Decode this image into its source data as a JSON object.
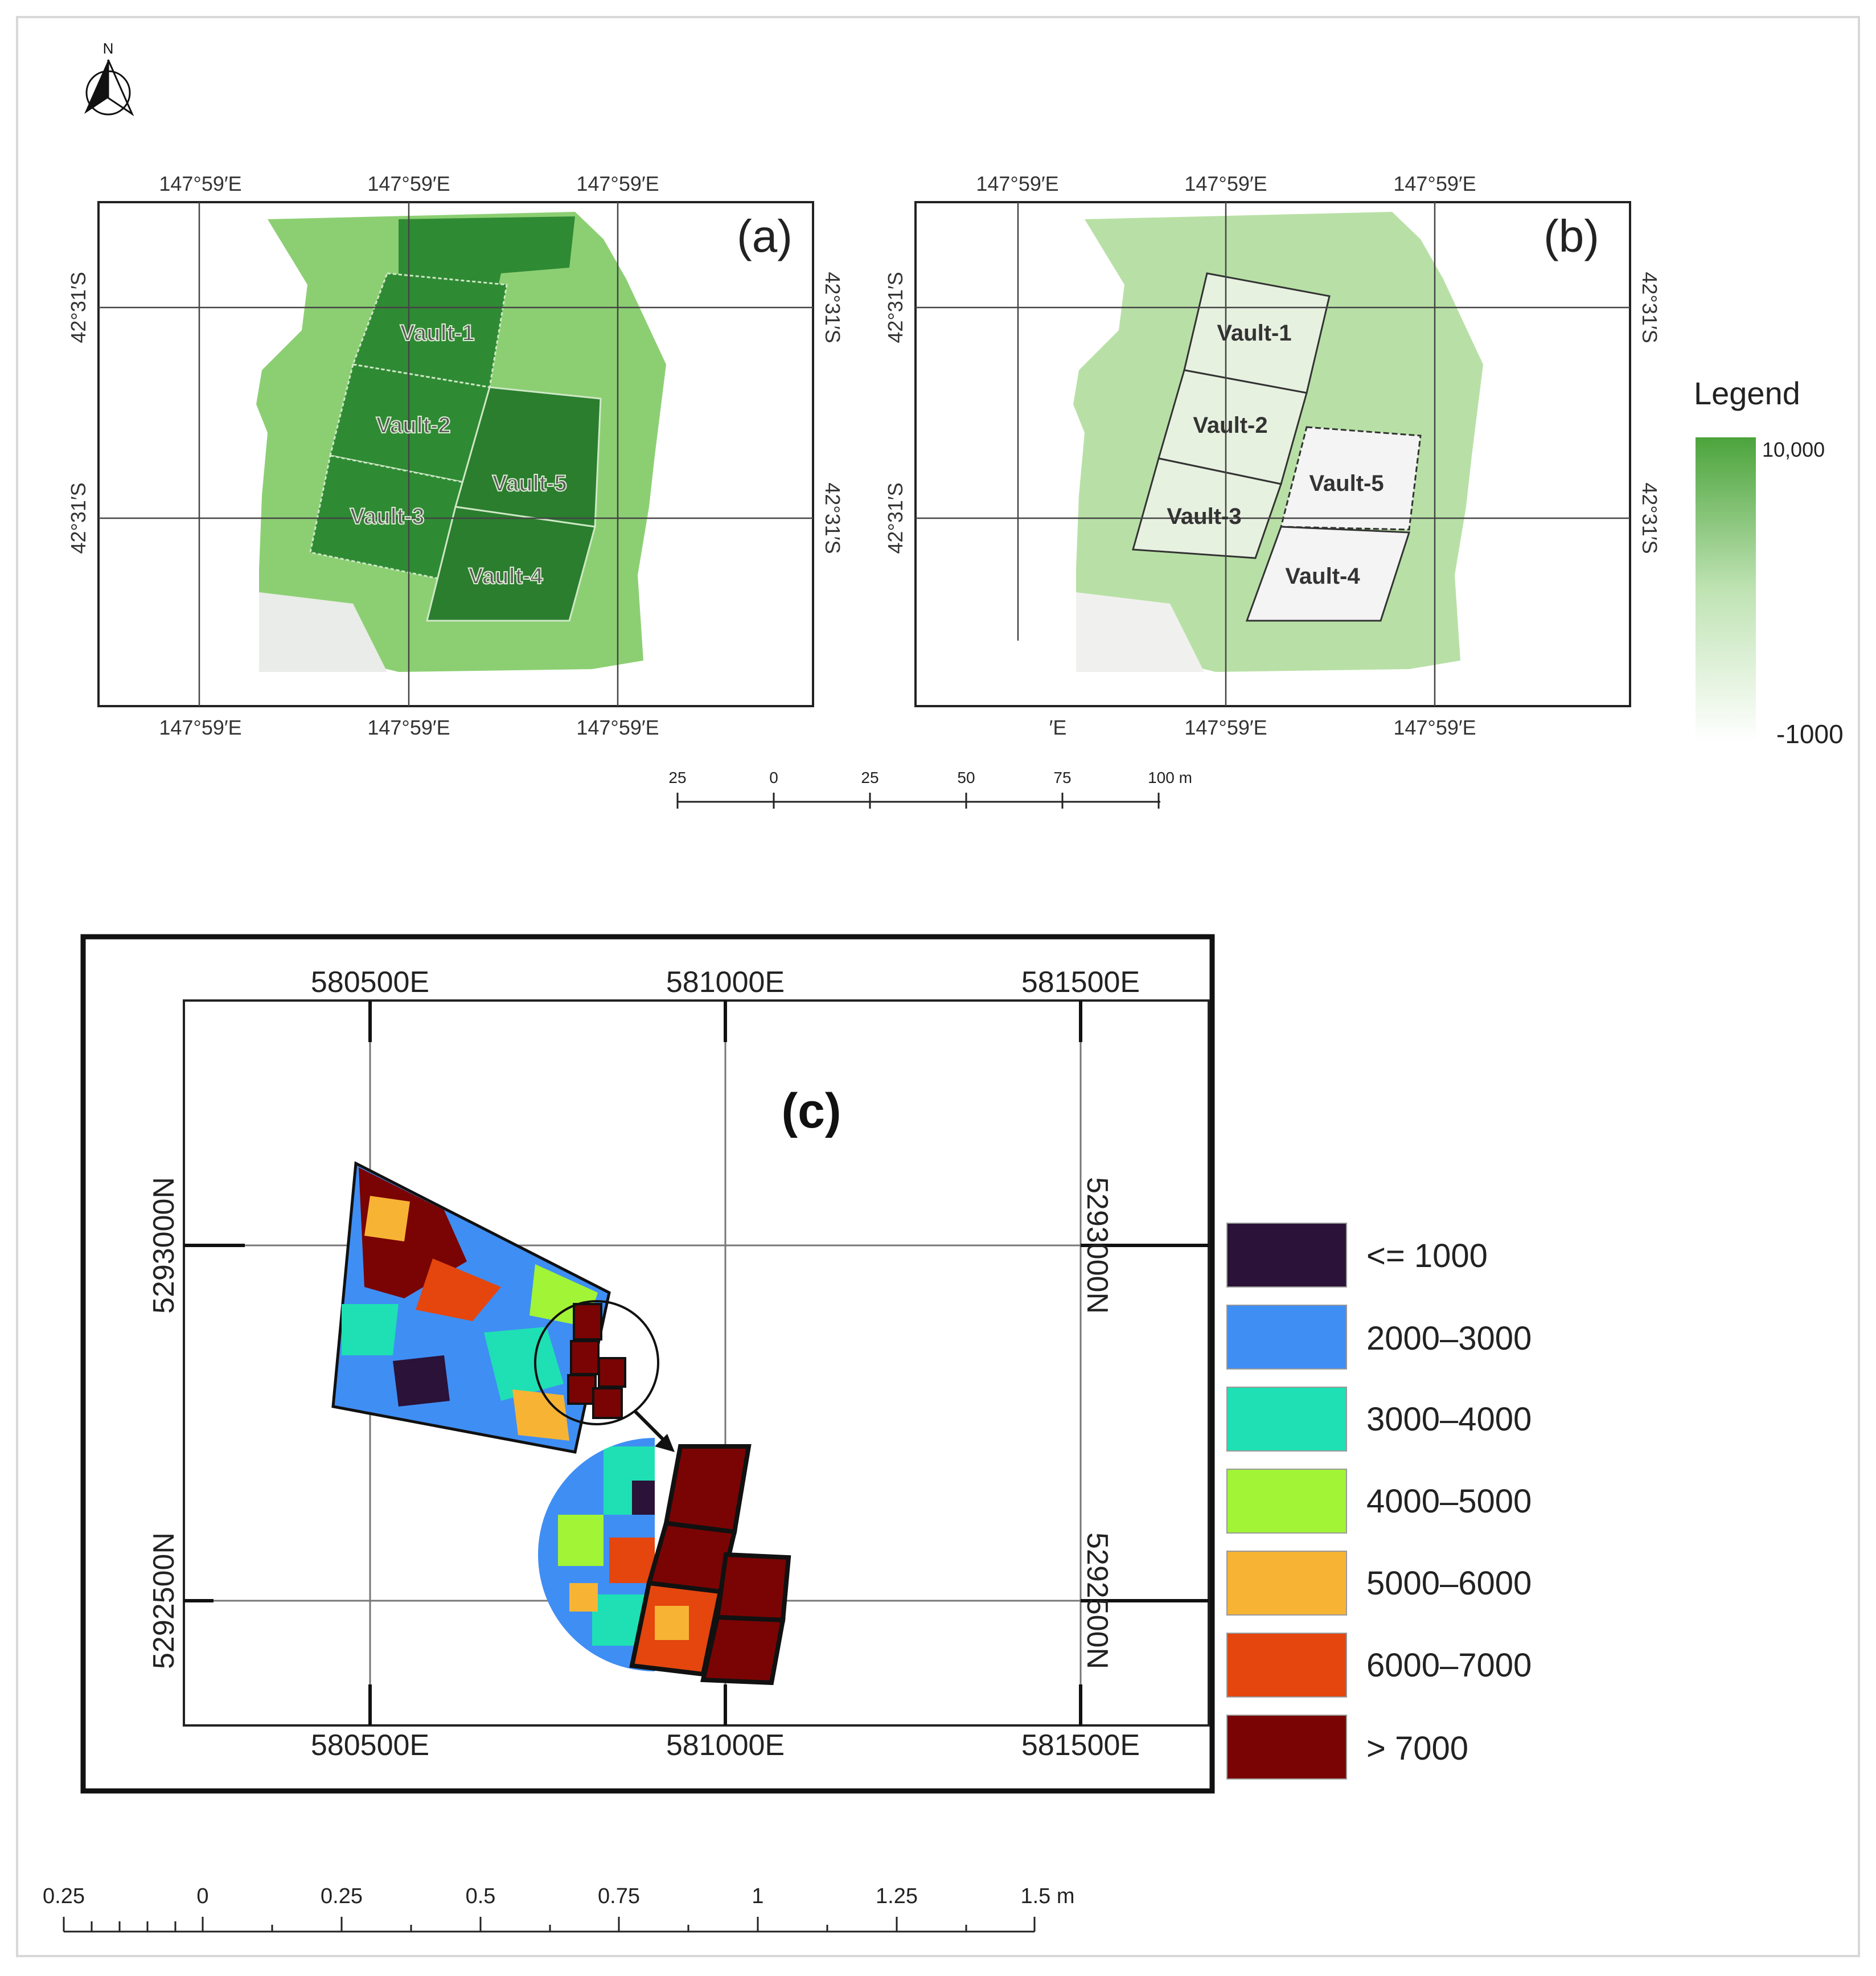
{
  "north": {
    "label": "N",
    "icon": "north-arrow-icon"
  },
  "panel_a": {
    "label": "(a)",
    "top_lon": [
      "147°59′E",
      "147°59′E",
      "147°59′E"
    ],
    "bottom_lon": [
      "147°59′E",
      "147°59′E",
      "147°59′E"
    ],
    "left_lat": [
      "42°31′S",
      "42°31′S"
    ],
    "right_lat": [
      "42°31′S",
      "42°31′S"
    ],
    "vaults": [
      "Vault-1",
      "Vault-2",
      "Vault-5",
      "Vault-3",
      "Vault-4"
    ]
  },
  "panel_b": {
    "label": "(b)",
    "top_lon": [
      "147°59′E",
      "147°59′E",
      "147°59′E"
    ],
    "bottom_lon": [
      "′E",
      "147°59′E",
      "147°59′E"
    ],
    "left_lat": [
      "42°31′S",
      "42°31′S"
    ],
    "right_lat": [
      "42°31′S",
      "42°31′S"
    ],
    "vaults": [
      "Vault-1",
      "Vault-2",
      "Vault-5",
      "Vault-3",
      "Vault-4"
    ]
  },
  "legend_ab": {
    "title": "Legend",
    "max": "10,000",
    "min": "-1000",
    "color_high": "#4ca43c",
    "color_low": "#ffffff"
  },
  "scalebar_top": {
    "ticks": [
      "25",
      "0",
      "25",
      "50",
      "75",
      "100 m"
    ]
  },
  "panel_c": {
    "label": "(c)",
    "top_e": [
      "580500E",
      "581000E",
      "581500E"
    ],
    "bottom_e": [
      "580500E",
      "581000E",
      "581500E"
    ],
    "left_n": [
      "5293000N",
      "5292500N"
    ],
    "right_n": [
      "5293000N",
      "5292500N"
    ],
    "legend": [
      {
        "label": "<= 1000",
        "color": "#2a1238"
      },
      {
        "label": "2000–3000",
        "color": "#3f8ef4"
      },
      {
        "label": "3000–4000",
        "color": "#1ee0b4"
      },
      {
        "label": "4000–5000",
        "color": "#a2f436"
      },
      {
        "label": "5000–6000",
        "color": "#f7b434"
      },
      {
        "label": "6000–7000",
        "color": "#e4460e"
      },
      {
        "label": "> 7000",
        "color": "#7a0403"
      }
    ]
  },
  "scalebar_bottom": {
    "ticks": [
      "0.25",
      "0",
      "0.25",
      "0.5",
      "0.75",
      "1",
      "1.25",
      "1.5 m"
    ]
  }
}
